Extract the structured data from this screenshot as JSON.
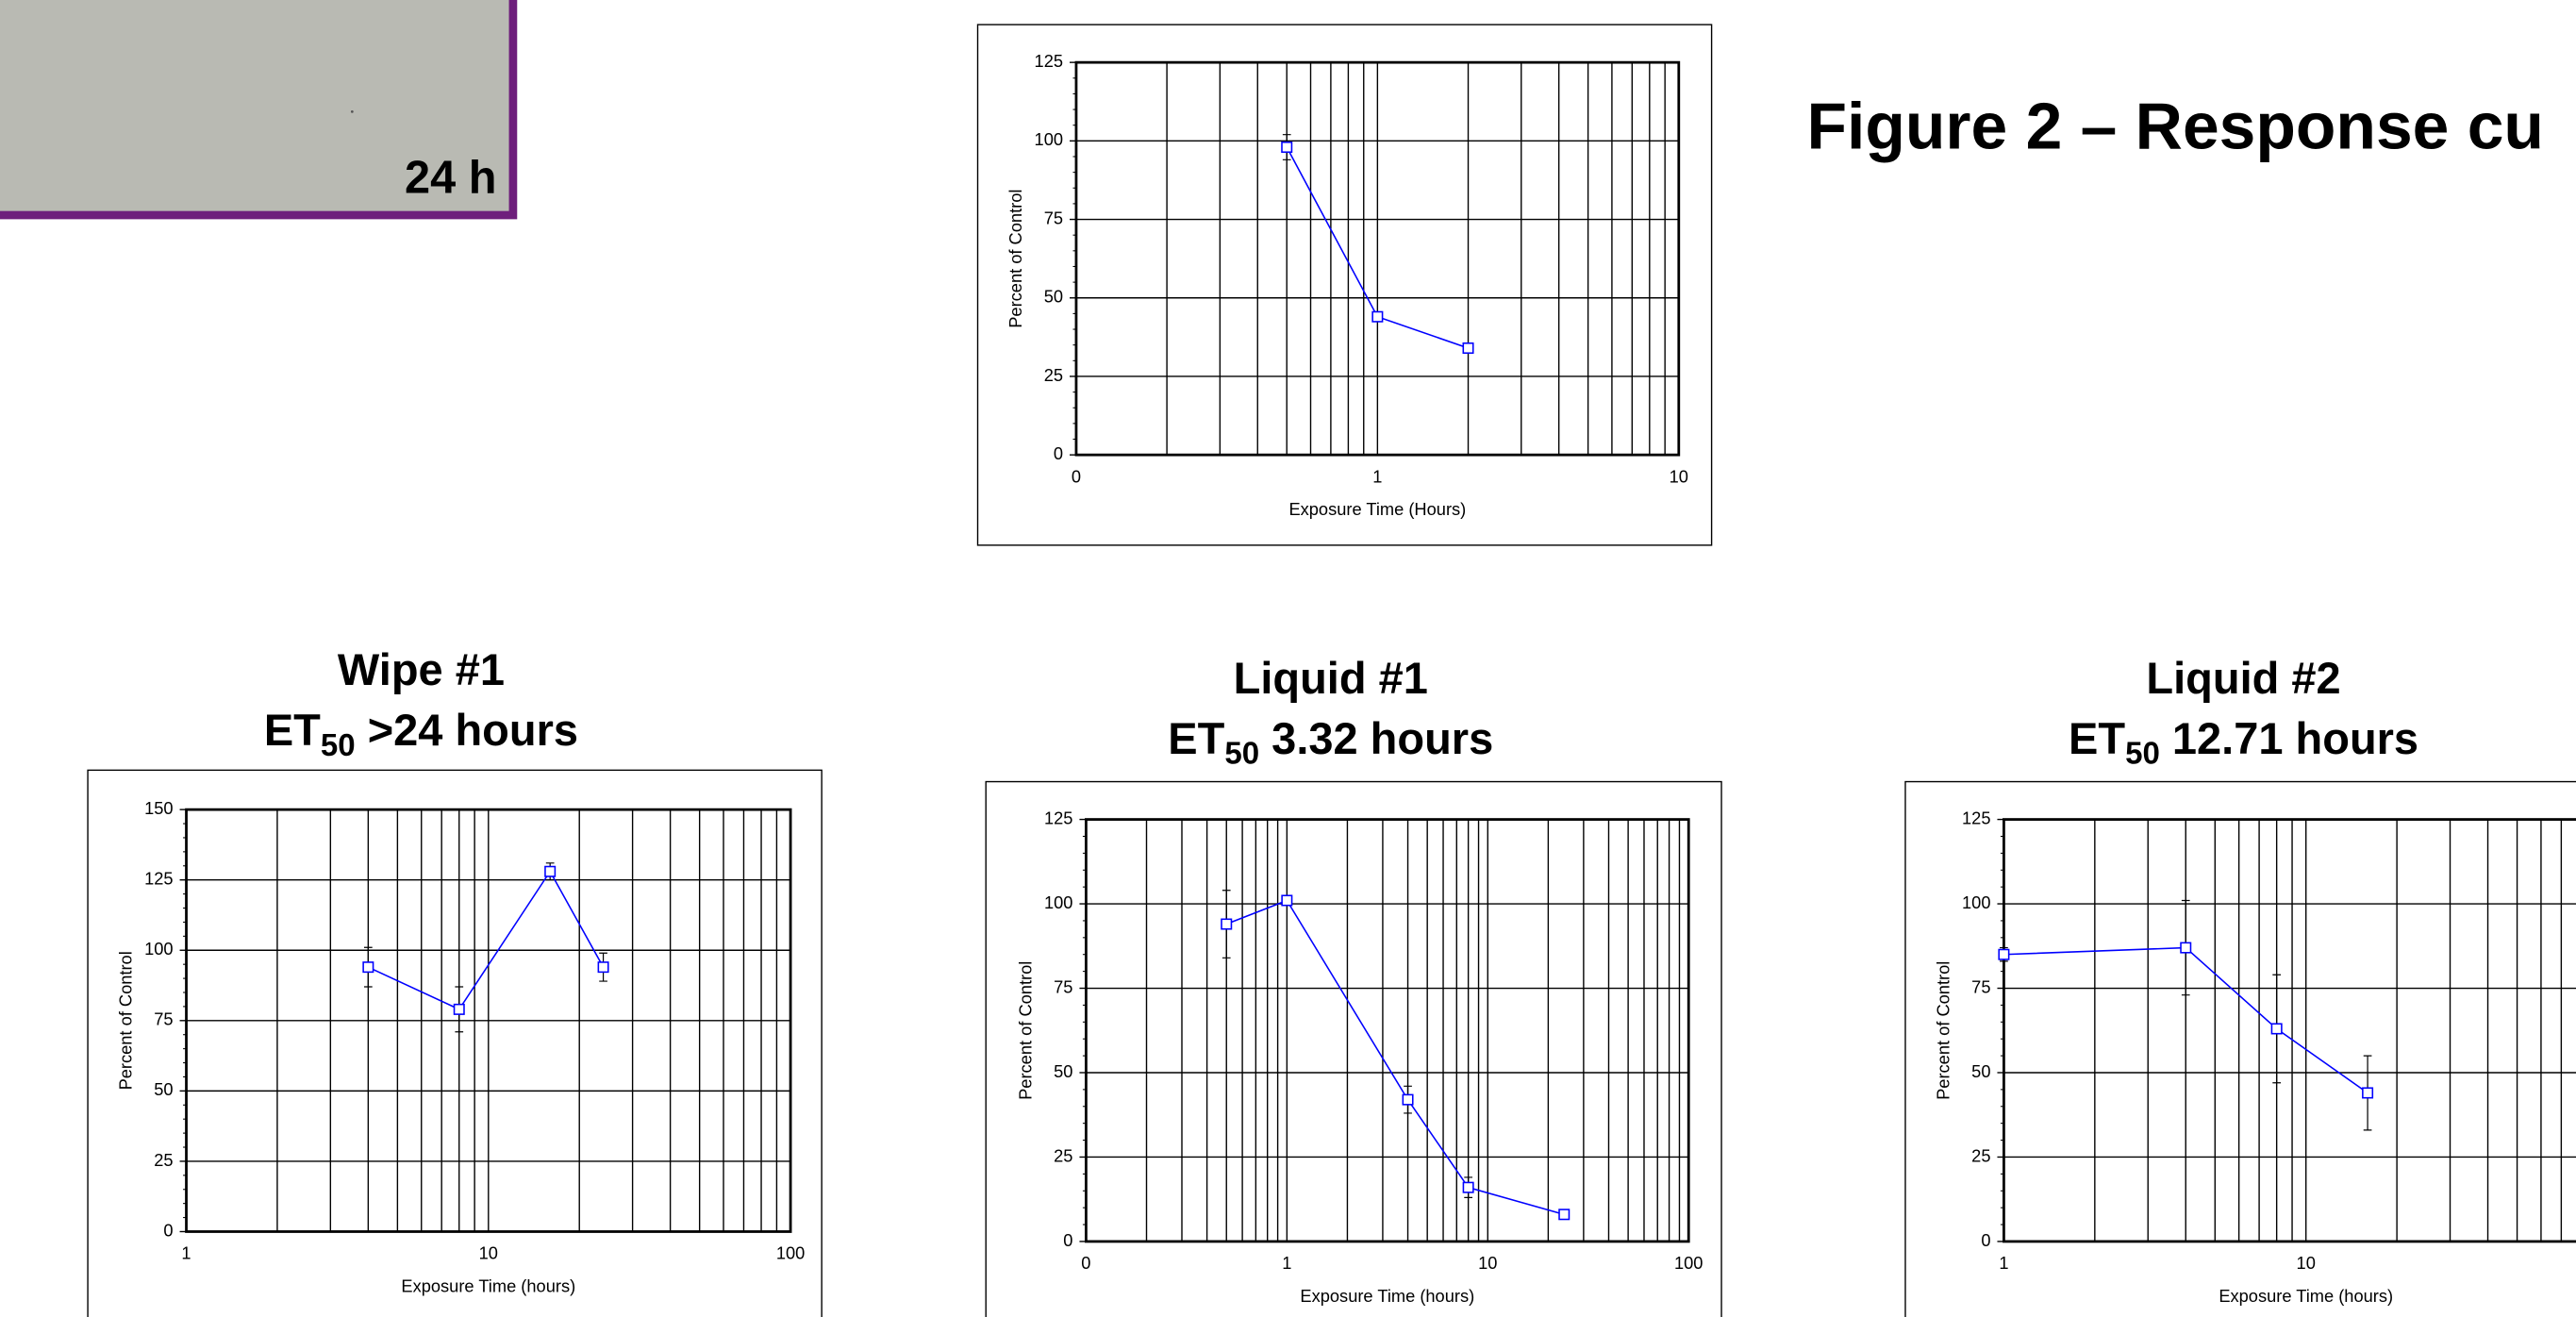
{
  "chart_data": [
    {
      "type": "line",
      "y_label": "Percent of Control",
      "x_label": "Exposure Time (Hours)",
      "log_x": true,
      "grid": true,
      "color": "#0000ff",
      "x": [
        0.5,
        1,
        2
      ],
      "values": [
        98,
        44,
        34
      ],
      "errors": [
        4,
        1,
        1
      ],
      "xlim": [
        0.1,
        10
      ],
      "xticks": [
        {
          "value": 0.1,
          "label": "0"
        },
        1,
        10
      ],
      "ylim": [
        0,
        125
      ],
      "yticks": [
        0,
        25,
        50,
        75,
        100,
        125
      ]
    },
    {
      "type": "line",
      "title": "Wipe #1",
      "subtitle": [
        "ET",
        "50",
        " >24 hours"
      ],
      "y_label": "Percent of Control",
      "x_label": "Exposure Time (hours)",
      "log_x": true,
      "grid": true,
      "color": "#0000ff",
      "x": [
        4,
        8,
        16,
        24
      ],
      "values": [
        94,
        79,
        128,
        94
      ],
      "errors": [
        7,
        8,
        3,
        5
      ],
      "xlim": [
        1,
        100
      ],
      "xticks": [
        1,
        10,
        100
      ],
      "ylim": [
        0,
        150
      ],
      "yticks": [
        0,
        25,
        50,
        75,
        100,
        125,
        150
      ]
    },
    {
      "type": "line",
      "title": "Liquid #1",
      "subtitle": [
        "ET",
        "50",
        " 3.32 hours"
      ],
      "y_label": "Percent of Control",
      "x_label": "Exposure Time (hours)",
      "log_x": true,
      "grid": true,
      "color": "#0000ff",
      "x": [
        0.5,
        1,
        4,
        8,
        24
      ],
      "values": [
        94,
        101,
        42,
        16,
        8
      ],
      "errors": [
        10,
        1,
        4,
        3,
        1
      ],
      "xlim": [
        0.1,
        100
      ],
      "xticks": [
        {
          "value": 0.1,
          "label": "0"
        },
        1,
        10,
        100
      ],
      "ylim": [
        0,
        125
      ],
      "yticks": [
        0,
        25,
        50,
        75,
        100,
        125
      ]
    },
    {
      "type": "line",
      "title": "Liquid #2",
      "subtitle": [
        "ET",
        "50",
        " 12.71 hours"
      ],
      "y_label": "Percent of Control",
      "x_label": "Exposure Time (hours)",
      "log_x": true,
      "grid": true,
      "color": "#0000ff",
      "x": [
        1,
        4,
        8,
        16
      ],
      "values": [
        85,
        87,
        63,
        44
      ],
      "errors": [
        2,
        14,
        16,
        11
      ],
      "xlim": [
        1,
        100
      ],
      "xticks": [
        1,
        10
      ],
      "ylim": [
        0,
        125
      ],
      "yticks": [
        0,
        25,
        50,
        75,
        100,
        125
      ]
    }
  ],
  "figure_title": "Figure 2 – Response cu",
  "photo_label": "24 h"
}
